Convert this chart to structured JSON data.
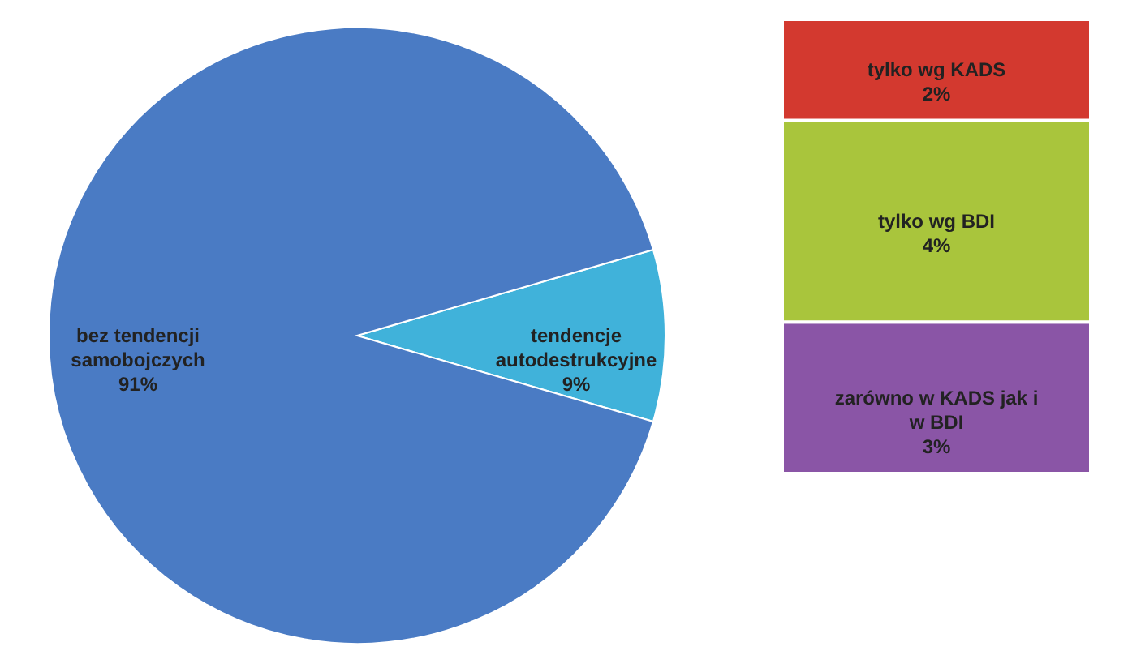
{
  "chart_data": [
    {
      "type": "pie",
      "categories": [
        "bez tendencji samobojczych",
        "tendencje autodestrukcyjne"
      ],
      "values": [
        91,
        9
      ],
      "colors": [
        "#4a7bc4",
        "#40b2da"
      ],
      "value_labels": [
        "91%",
        "9%"
      ]
    },
    {
      "type": "bar",
      "stacked": true,
      "categories": [
        null
      ],
      "tick_labels": false,
      "series": [
        {
          "name": "zarówno w KADS jak i w BDI",
          "color": "#8a55a6",
          "values": [
            3
          ],
          "value_labels": [
            "3%"
          ]
        },
        {
          "name": "tylko wg BDI",
          "color": "#a9c53c",
          "values": [
            4
          ],
          "value_labels": [
            "4%"
          ]
        },
        {
          "name": "tylko wg KADS",
          "color": "#d3392f",
          "values": [
            2
          ],
          "value_labels": [
            "2%"
          ]
        }
      ]
    }
  ]
}
